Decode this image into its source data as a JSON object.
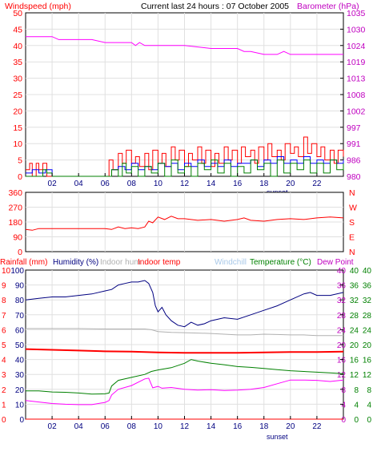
{
  "colors": {
    "red": "#ff0000",
    "blue": "#0000ff",
    "green": "#008000",
    "magenta": "#ff00ff",
    "grey": "#b0b0b0",
    "lightblue": "#a8c8e8",
    "axisred": "#ff0000",
    "axisgreen": "#008000",
    "navy": "#000080"
  },
  "top": {
    "title": "Current last 24 hours : 07 October 2005",
    "left_label": "Windspeed (mph)",
    "right_label": "Barometer (hPa)",
    "left_ticks": [
      "50",
      "45",
      "40",
      "35",
      "30",
      "25",
      "20",
      "15",
      "10",
      "5",
      "0"
    ],
    "right_ticks": [
      "1035",
      "1030",
      "1024",
      "1019",
      "1013",
      "1008",
      "1002",
      "997",
      "991",
      "986",
      "980"
    ],
    "x_ticks": [
      "02",
      "04",
      "06",
      "08",
      "10",
      "12",
      "14",
      "16",
      "18",
      "20",
      "22"
    ],
    "sunset": "sunset"
  },
  "mid": {
    "left_ticks": [
      "360",
      "270",
      "180",
      "90",
      "0"
    ],
    "right_ticks": [
      "N",
      "W",
      "S",
      "E",
      "N"
    ]
  },
  "bottom": {
    "labels": {
      "rain": "Rainfall (mm)",
      "hum": "Humidity (%)",
      "inhum": "Indoor hum",
      "intemp": "Indoor temp",
      "windchill": "Windchill",
      "temp": "Temperature (°C)",
      "dew": "Dew Point"
    },
    "rain_ticks": [
      "10",
      "9",
      "8",
      "7",
      "6",
      "5",
      "4",
      "3",
      "2",
      "1",
      "0"
    ],
    "hum_ticks": [
      "100",
      "90",
      "80",
      "70",
      "60",
      "50",
      "40",
      "30",
      "20",
      "10",
      "0"
    ],
    "t1_ticks": [
      "40",
      "36",
      "32",
      "28",
      "24",
      "20",
      "16",
      "12",
      "8",
      "4",
      "0"
    ],
    "t2_ticks": [
      "40",
      "36",
      "32",
      "28",
      "24",
      "20",
      "16",
      "12",
      "8",
      "4",
      "0"
    ],
    "t3_ticks": [
      "40",
      "36",
      "32",
      "28",
      "24",
      "20",
      "16",
      "12",
      "8",
      "4",
      "0"
    ],
    "x_ticks": [
      "02",
      "04",
      "06",
      "08",
      "10",
      "12",
      "14",
      "16",
      "18",
      "20",
      "22"
    ],
    "sunset": "sunset"
  },
  "chart_data": [
    {
      "type": "line",
      "title": "Current last 24 hours : 07 October 2005",
      "x_range": [
        0,
        24
      ],
      "ylim_left": [
        0,
        50
      ],
      "ylim_right": [
        980,
        1035
      ],
      "ylabel_left": "Windspeed (mph)",
      "ylabel_right": "Barometer (hPa)",
      "series": [
        {
          "axis": "right",
          "color": "magenta",
          "x": [
            0,
            2,
            2.5,
            5,
            6,
            8,
            8.3,
            8.6,
            9,
            10,
            12,
            14,
            16,
            16.5,
            17,
            18,
            19,
            19.5,
            20,
            21,
            21.5,
            22,
            23,
            24
          ],
          "y": [
            1027,
            1027,
            1026,
            1026,
            1025,
            1025,
            1024,
            1025,
            1024,
            1024,
            1024,
            1023,
            1023,
            1022,
            1022,
            1021,
            1021,
            1022,
            1021,
            1021,
            1021,
            1021,
            1021,
            1021
          ]
        },
        {
          "axis": "left",
          "color": "red",
          "x": [
            0,
            0.3,
            0.5,
            0.8,
            1,
            1.3,
            1.6,
            2,
            6,
            6.3,
            6.6,
            7,
            7.3,
            7.6,
            8,
            8.3,
            8.6,
            9,
            9.3,
            9.6,
            10,
            10.3,
            10.6,
            11,
            11.3,
            11.6,
            12,
            12.3,
            12.6,
            13,
            13.3,
            13.6,
            14,
            14.3,
            14.6,
            15,
            15.3,
            15.6,
            16,
            16.3,
            16.6,
            17,
            17.3,
            17.6,
            18,
            18.3,
            18.6,
            19,
            19.3,
            19.6,
            20,
            20.3,
            20.6,
            21,
            21.3,
            21.6,
            22,
            22.3,
            22.6,
            23,
            23.3,
            23.6,
            24
          ],
          "y": [
            2,
            4,
            0,
            4,
            2,
            4,
            0,
            0,
            0,
            5,
            2,
            7,
            4,
            8,
            4,
            6,
            3,
            7,
            2,
            8,
            4,
            7,
            3,
            9,
            5,
            8,
            3,
            7,
            5,
            9,
            4,
            8,
            3,
            7,
            4,
            9,
            5,
            8,
            4,
            9,
            6,
            8,
            4,
            9,
            5,
            10,
            6,
            8,
            5,
            10,
            7,
            9,
            6,
            12,
            7,
            10,
            6,
            9,
            5,
            8,
            4,
            8,
            6
          ]
        },
        {
          "axis": "left",
          "color": "blue",
          "x": [
            0,
            0.5,
            1,
            1.5,
            2,
            6,
            6.5,
            7,
            7.5,
            8,
            8.5,
            9,
            9.5,
            10,
            10.5,
            11,
            11.5,
            12,
            12.5,
            13,
            13.5,
            14,
            14.5,
            15,
            15.5,
            16,
            16.5,
            17,
            17.5,
            18,
            18.5,
            19,
            19.5,
            20,
            20.5,
            21,
            21.5,
            22,
            22.5,
            23,
            23.5,
            24
          ],
          "y": [
            1,
            2,
            1,
            2,
            0,
            0,
            2,
            3,
            2,
            4,
            2,
            3,
            2,
            4,
            3,
            4,
            2,
            4,
            3,
            5,
            3,
            4,
            3,
            5,
            3,
            4,
            4,
            5,
            3,
            5,
            4,
            6,
            4,
            5,
            4,
            6,
            4,
            5,
            4,
            5,
            4,
            5
          ]
        },
        {
          "axis": "left",
          "color": "green",
          "x": [
            0,
            1,
            1.3,
            1.6,
            2,
            6,
            6.5,
            7,
            7.3,
            7.6,
            8,
            8.5,
            9,
            9.5,
            10,
            10.5,
            11,
            11.5,
            12,
            12.5,
            13,
            13.5,
            14,
            14.5,
            15,
            15.5,
            16,
            16.5,
            17,
            17.5,
            18,
            18.5,
            19,
            19.5,
            20,
            20.5,
            21,
            21.5,
            22,
            22.5,
            23,
            23.5,
            24
          ],
          "y": [
            0,
            0,
            2,
            1,
            0,
            0,
            2,
            0,
            4,
            1,
            3,
            0,
            3,
            1,
            4,
            0,
            5,
            1,
            3,
            0,
            4,
            2,
            5,
            1,
            4,
            0,
            3,
            1,
            5,
            2,
            4,
            0,
            5,
            1,
            4,
            2,
            5,
            1,
            4,
            1,
            5,
            2,
            4
          ]
        }
      ]
    },
    {
      "type": "line",
      "x_range": [
        0,
        24
      ],
      "ylim": [
        0,
        360
      ],
      "series": [
        {
          "color": "red",
          "x": [
            0,
            0.5,
            1,
            2,
            3,
            4,
            5,
            6,
            6.5,
            7,
            7.5,
            8,
            8.5,
            9,
            9.3,
            9.6,
            10,
            10.5,
            11,
            11.5,
            12,
            13,
            14,
            15,
            16,
            16.5,
            17,
            18,
            19,
            20,
            21,
            22,
            23,
            24
          ],
          "y": [
            135,
            130,
            140,
            140,
            140,
            140,
            140,
            140,
            135,
            150,
            140,
            145,
            140,
            150,
            185,
            175,
            210,
            195,
            215,
            200,
            200,
            190,
            195,
            185,
            195,
            205,
            190,
            185,
            195,
            200,
            195,
            205,
            210,
            205
          ]
        }
      ]
    },
    {
      "type": "line",
      "x_range": [
        0,
        24
      ],
      "ylabels": [
        "Rainfall (mm)",
        "Humidity (%)",
        "Temperature (°C)"
      ],
      "ylim_rain": [
        0,
        10
      ],
      "ylim_hum": [
        0,
        100
      ],
      "ylim_temp": [
        0,
        40
      ],
      "series": [
        {
          "name": "Rainfall (mm)",
          "axis": "rain",
          "color": "red",
          "x": [
            0,
            24
          ],
          "y": [
            0,
            0
          ]
        },
        {
          "name": "Humidity (%)",
          "axis": "hum",
          "color": "navy",
          "x": [
            0,
            1,
            2,
            3,
            4,
            5,
            6,
            6.5,
            7,
            7.5,
            8,
            8.5,
            9,
            9.3,
            9.6,
            9.8,
            10,
            10.3,
            10.6,
            11,
            11.5,
            12,
            12.5,
            13,
            13.5,
            14,
            15,
            16,
            17,
            18,
            19,
            20,
            21,
            21.5,
            22,
            23,
            24
          ],
          "y": [
            80,
            81,
            82,
            82,
            83,
            84,
            86,
            87,
            90,
            91,
            92,
            92,
            93,
            91,
            85,
            76,
            72,
            75,
            70,
            66,
            63,
            62,
            65,
            63,
            64,
            66,
            68,
            67,
            70,
            73,
            76,
            80,
            84,
            85,
            83,
            83,
            85
          ]
        },
        {
          "name": "Windchill",
          "axis": "temp",
          "color": "grey",
          "x": [
            0,
            2,
            4,
            6,
            8,
            9,
            9.5,
            10,
            11,
            12,
            13,
            14,
            15,
            16,
            17,
            18,
            19,
            20,
            21,
            22,
            23,
            24
          ],
          "y": [
            24.3,
            24.3,
            24.3,
            24.2,
            24.2,
            24.2,
            24.0,
            23.5,
            23.3,
            23.2,
            23.1,
            23.0,
            22.8,
            22.6,
            22.6,
            22.8,
            22.7,
            22.6,
            22.6,
            22.4,
            22.4,
            22.4
          ]
        },
        {
          "name": "Indoor temp",
          "axis": "temp",
          "color": "red",
          "x": [
            0,
            2,
            4,
            6,
            8,
            10,
            12,
            14,
            16,
            18,
            20,
            22,
            24
          ],
          "y": [
            18.8,
            18.6,
            18.4,
            18.2,
            18.1,
            17.9,
            17.8,
            17.8,
            17.8,
            17.9,
            18.0,
            18.0,
            18.1
          ]
        },
        {
          "name": "Temperature (°C)",
          "axis": "temp",
          "color": "green",
          "x": [
            0,
            1,
            2,
            3,
            4,
            5,
            6,
            6.3,
            6.5,
            7,
            8,
            9,
            9.5,
            10,
            11,
            12,
            12.5,
            13,
            14,
            15,
            16,
            17,
            18,
            19,
            20,
            21,
            22,
            23,
            24
          ],
          "y": [
            7.6,
            7.6,
            7.3,
            7.2,
            7.0,
            6.7,
            6.8,
            7.0,
            8.9,
            10.4,
            11.2,
            12.0,
            12.8,
            13.2,
            13.8,
            15.0,
            16.0,
            15.6,
            15.0,
            14.6,
            14.1,
            13.9,
            13.6,
            13.3,
            13.0,
            12.8,
            12.6,
            12.4,
            12.2
          ]
        },
        {
          "name": "Dew Point",
          "axis": "temp",
          "color": "magenta",
          "x": [
            0,
            1,
            2,
            3,
            4,
            5,
            6,
            6.3,
            6.5,
            7,
            8,
            9,
            9.3,
            9.6,
            10,
            10.3,
            11,
            12,
            13,
            14,
            15,
            16,
            17,
            18,
            19,
            20,
            21,
            22,
            23,
            24
          ],
          "y": [
            5.0,
            4.6,
            4.2,
            4.0,
            3.9,
            3.9,
            4.5,
            5.0,
            6.5,
            8.0,
            9.0,
            10.8,
            11.0,
            8.4,
            8.8,
            8.3,
            8.5,
            8.0,
            7.8,
            7.9,
            7.7,
            7.8,
            8.0,
            8.5,
            9.5,
            10.5,
            10.5,
            10.4,
            10.1,
            10.5
          ]
        }
      ]
    }
  ]
}
